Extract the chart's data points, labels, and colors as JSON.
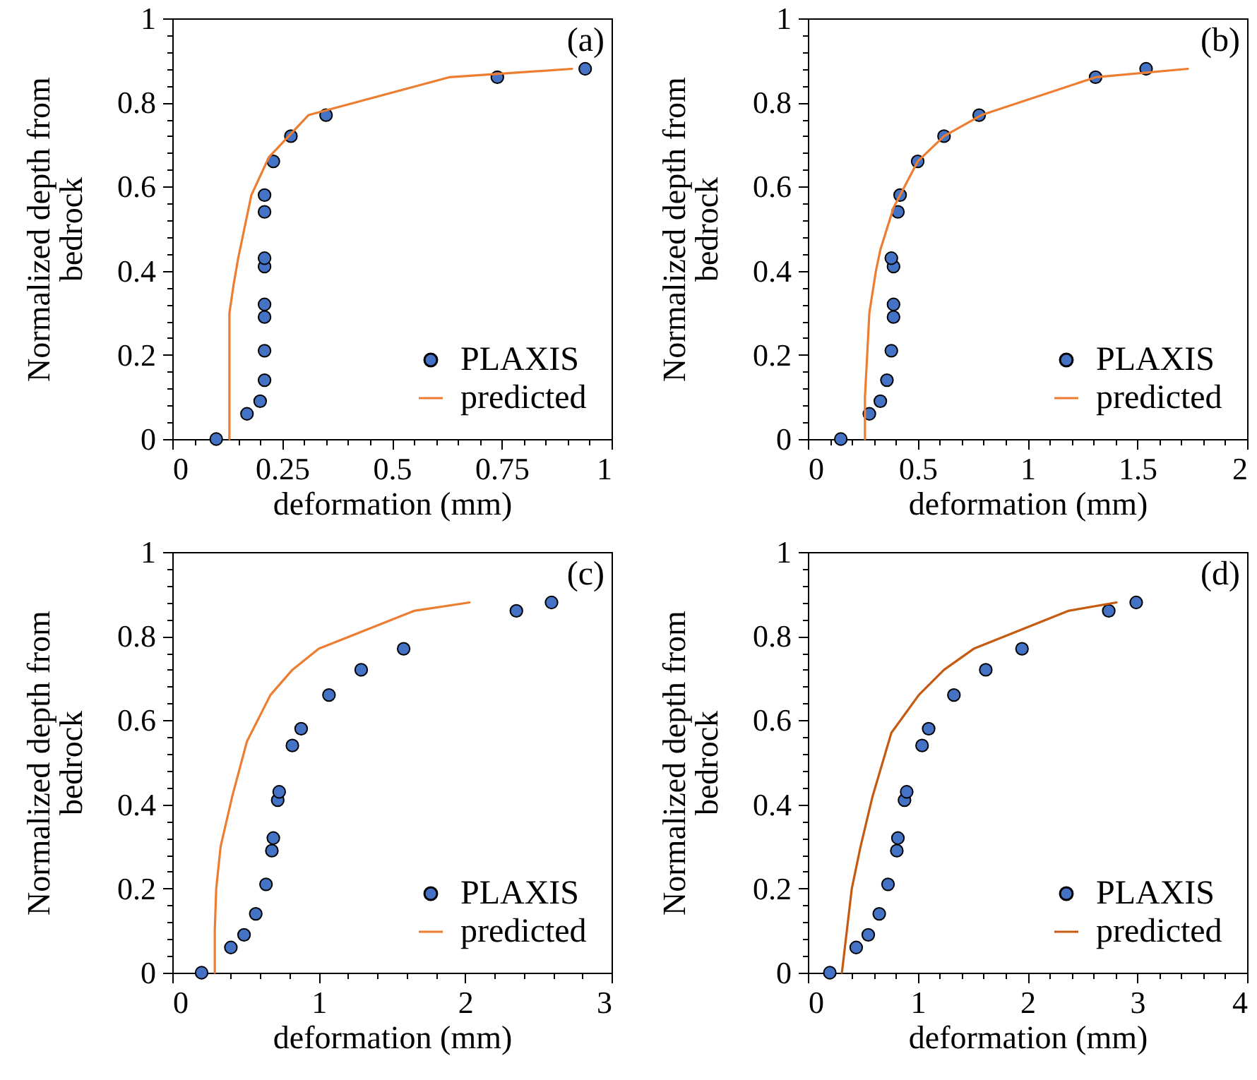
{
  "chart_data": [
    {
      "type": "scatter",
      "xlabel": "deformation (mm)",
      "ylabel": "Normalized depth from bedrock",
      "annotations": [
        "(a)"
      ],
      "legend": "bottom right",
      "xlim": [
        0,
        1
      ],
      "ylim": [
        0,
        1
      ],
      "xticks": [
        0,
        {
          "value": 0.05,
          "label": null
        },
        {
          "value": 0.1,
          "label": null
        },
        {
          "value": 0.15,
          "label": null
        },
        {
          "value": 0.2,
          "label": null
        },
        0.25,
        {
          "value": 0.3,
          "label": null
        },
        {
          "value": 0.35,
          "label": null
        },
        {
          "value": 0.4,
          "label": null
        },
        {
          "value": 0.45,
          "label": null
        },
        0.5,
        {
          "value": 0.55,
          "label": null
        },
        {
          "value": 0.6,
          "label": null
        },
        {
          "value": 0.65,
          "label": null
        },
        {
          "value": 0.7,
          "label": null
        },
        0.75,
        {
          "value": 0.8,
          "label": null
        },
        {
          "value": 0.85,
          "label": null
        },
        {
          "value": 0.9,
          "label": null
        },
        {
          "value": 0.95,
          "label": null
        },
        1
      ],
      "yticks": [
        0,
        {
          "value": 0.04,
          "label": null
        },
        {
          "value": 0.08,
          "label": null
        },
        {
          "value": 0.12,
          "label": null
        },
        {
          "value": 0.16,
          "label": null
        },
        0.2,
        {
          "value": 0.24,
          "label": null
        },
        {
          "value": 0.28,
          "label": null
        },
        {
          "value": 0.32,
          "label": null
        },
        {
          "value": 0.36,
          "label": null
        },
        0.4,
        {
          "value": 0.44,
          "label": null
        },
        {
          "value": 0.48,
          "label": null
        },
        {
          "value": 0.52,
          "label": null
        },
        {
          "value": 0.56,
          "label": null
        },
        0.6,
        {
          "value": 0.64,
          "label": null
        },
        {
          "value": 0.68,
          "label": null
        },
        {
          "value": 0.72,
          "label": null
        },
        {
          "value": 0.76,
          "label": null
        },
        0.8,
        {
          "value": 0.84,
          "label": null
        },
        {
          "value": 0.88,
          "label": null
        },
        {
          "value": 0.92,
          "label": null
        },
        {
          "value": 0.96,
          "label": null
        },
        1
      ],
      "series": [
        {
          "name": "PLAXIS",
          "marker": "circle",
          "color": "#4472c4",
          "x": [
            0.1,
            0.17,
            0.2,
            0.21,
            0.21,
            0.21,
            0.21,
            0.21,
            0.21,
            0.21,
            0.21,
            0.23,
            0.27,
            0.35,
            0.74,
            0.94
          ],
          "values": [
            0,
            0.06,
            0.09,
            0.14,
            0.21,
            0.29,
            0.32,
            0.41,
            0.43,
            0.54,
            0.58,
            0.66,
            0.72,
            0.77,
            0.86,
            0.88
          ]
        },
        {
          "name": "predicted",
          "type": "line",
          "line_style": "solid",
          "color": "#ed7d31",
          "x": [
            0.13,
            0.13,
            0.13,
            0.14,
            0.15,
            0.18,
            0.22,
            0.31,
            0.63,
            0.91
          ],
          "values": [
            0,
            0.2,
            0.3,
            0.37,
            0.43,
            0.58,
            0.67,
            0.77,
            0.86,
            0.88
          ]
        }
      ]
    },
    {
      "type": "scatter",
      "xlabel": "deformation (mm)",
      "ylabel": "Normalized depth from bedrock",
      "annotations": [
        "(b)"
      ],
      "legend": "bottom right",
      "xlim": [
        0,
        2
      ],
      "ylim": [
        0,
        1
      ],
      "xticks": [
        0,
        {
          "value": 0.1,
          "label": null
        },
        {
          "value": 0.2,
          "label": null
        },
        {
          "value": 0.3,
          "label": null
        },
        {
          "value": 0.4,
          "label": null
        },
        0.5,
        {
          "value": 0.6,
          "label": null
        },
        {
          "value": 0.7,
          "label": null
        },
        {
          "value": 0.8,
          "label": null
        },
        {
          "value": 0.9,
          "label": null
        },
        1,
        {
          "value": 1.1,
          "label": null
        },
        {
          "value": 1.2,
          "label": null
        },
        {
          "value": 1.3,
          "label": null
        },
        {
          "value": 1.4,
          "label": null
        },
        1.5,
        {
          "value": 1.6,
          "label": null
        },
        {
          "value": 1.7,
          "label": null
        },
        {
          "value": 1.8,
          "label": null
        },
        {
          "value": 1.9,
          "label": null
        },
        2
      ],
      "yticks": [
        0,
        {
          "value": 0.04,
          "label": null
        },
        {
          "value": 0.08,
          "label": null
        },
        {
          "value": 0.12,
          "label": null
        },
        {
          "value": 0.16,
          "label": null
        },
        0.2,
        {
          "value": 0.24,
          "label": null
        },
        {
          "value": 0.28,
          "label": null
        },
        {
          "value": 0.32,
          "label": null
        },
        {
          "value": 0.36,
          "label": null
        },
        0.4,
        {
          "value": 0.44,
          "label": null
        },
        {
          "value": 0.48,
          "label": null
        },
        {
          "value": 0.52,
          "label": null
        },
        {
          "value": 0.56,
          "label": null
        },
        0.6,
        {
          "value": 0.64,
          "label": null
        },
        {
          "value": 0.68,
          "label": null
        },
        {
          "value": 0.72,
          "label": null
        },
        {
          "value": 0.76,
          "label": null
        },
        0.8,
        {
          "value": 0.84,
          "label": null
        },
        {
          "value": 0.88,
          "label": null
        },
        {
          "value": 0.92,
          "label": null
        },
        {
          "value": 0.96,
          "label": null
        },
        1
      ],
      "series": [
        {
          "name": "PLAXIS",
          "marker": "circle",
          "color": "#4472c4",
          "x": [
            0.15,
            0.28,
            0.33,
            0.36,
            0.38,
            0.39,
            0.39,
            0.39,
            0.38,
            0.41,
            0.42,
            0.5,
            0.62,
            0.78,
            1.31,
            1.54
          ],
          "values": [
            0,
            0.06,
            0.09,
            0.14,
            0.21,
            0.29,
            0.32,
            0.41,
            0.43,
            0.54,
            0.58,
            0.66,
            0.72,
            0.77,
            0.86,
            0.88
          ]
        },
        {
          "name": "predicted",
          "type": "line",
          "line_style": "solid",
          "color": "#ed7d31",
          "x": [
            0.26,
            0.26,
            0.27,
            0.28,
            0.31,
            0.33,
            0.36,
            0.39,
            0.44,
            0.5,
            0.62,
            0.79,
            1.31,
            1.73
          ],
          "values": [
            0,
            0.1,
            0.2,
            0.3,
            0.4,
            0.45,
            0.5,
            0.55,
            0.6,
            0.66,
            0.72,
            0.77,
            0.86,
            0.88
          ]
        }
      ]
    },
    {
      "type": "scatter",
      "xlabel": "deformation (mm)",
      "ylabel": "Normalized depth from bedrock",
      "annotations": [
        "(c)"
      ],
      "legend": "bottom right",
      "xlim": [
        0,
        3
      ],
      "ylim": [
        0,
        1
      ],
      "xticks": [
        0,
        {
          "value": 0.2,
          "label": null
        },
        {
          "value": 0.4,
          "label": null
        },
        {
          "value": 0.6,
          "label": null
        },
        {
          "value": 0.8,
          "label": null
        },
        1,
        {
          "value": 1.2,
          "label": null
        },
        {
          "value": 1.4,
          "label": null
        },
        {
          "value": 1.6,
          "label": null
        },
        {
          "value": 1.8,
          "label": null
        },
        2,
        {
          "value": 2.2,
          "label": null
        },
        {
          "value": 2.4,
          "label": null
        },
        {
          "value": 2.6,
          "label": null
        },
        {
          "value": 2.8,
          "label": null
        },
        3
      ],
      "yticks": [
        0,
        {
          "value": 0.04,
          "label": null
        },
        {
          "value": 0.08,
          "label": null
        },
        {
          "value": 0.12,
          "label": null
        },
        {
          "value": 0.16,
          "label": null
        },
        0.2,
        {
          "value": 0.24,
          "label": null
        },
        {
          "value": 0.28,
          "label": null
        },
        {
          "value": 0.32,
          "label": null
        },
        {
          "value": 0.36,
          "label": null
        },
        0.4,
        {
          "value": 0.44,
          "label": null
        },
        {
          "value": 0.48,
          "label": null
        },
        {
          "value": 0.52,
          "label": null
        },
        {
          "value": 0.56,
          "label": null
        },
        0.6,
        {
          "value": 0.64,
          "label": null
        },
        {
          "value": 0.68,
          "label": null
        },
        {
          "value": 0.72,
          "label": null
        },
        {
          "value": 0.76,
          "label": null
        },
        0.8,
        {
          "value": 0.84,
          "label": null
        },
        {
          "value": 0.88,
          "label": null
        },
        {
          "value": 0.92,
          "label": null
        },
        {
          "value": 0.96,
          "label": null
        },
        1
      ],
      "series": [
        {
          "name": "PLAXIS",
          "marker": "circle",
          "color": "#4472c4",
          "x": [
            0.2,
            0.4,
            0.49,
            0.57,
            0.64,
            0.68,
            0.69,
            0.72,
            0.73,
            0.82,
            0.88,
            1.07,
            1.29,
            1.58,
            2.35,
            2.59
          ],
          "values": [
            0,
            0.06,
            0.09,
            0.14,
            0.21,
            0.29,
            0.32,
            0.41,
            0.43,
            0.54,
            0.58,
            0.66,
            0.72,
            0.77,
            0.86,
            0.88
          ]
        },
        {
          "name": "predicted",
          "type": "line",
          "line_style": "solid",
          "color": "#ed7d31",
          "x": [
            0.29,
            0.29,
            0.3,
            0.33,
            0.41,
            0.51,
            0.67,
            0.82,
            1.0,
            1.65,
            2.03
          ],
          "values": [
            0,
            0.1,
            0.2,
            0.3,
            0.42,
            0.55,
            0.66,
            0.72,
            0.77,
            0.86,
            0.88
          ]
        }
      ]
    },
    {
      "type": "scatter",
      "xlabel": "deformation (mm)",
      "ylabel": "Normalized depth from bedrock",
      "annotations": [
        "(d)"
      ],
      "legend": "bottom right",
      "xlim": [
        0,
        4
      ],
      "ylim": [
        0,
        1
      ],
      "xticks": [
        0,
        {
          "value": 0.2,
          "label": null
        },
        {
          "value": 0.4,
          "label": null
        },
        {
          "value": 0.6,
          "label": null
        },
        {
          "value": 0.8,
          "label": null
        },
        1,
        {
          "value": 1.2,
          "label": null
        },
        {
          "value": 1.4,
          "label": null
        },
        {
          "value": 1.6,
          "label": null
        },
        {
          "value": 1.8,
          "label": null
        },
        2,
        {
          "value": 2.2,
          "label": null
        },
        {
          "value": 2.4,
          "label": null
        },
        {
          "value": 2.6,
          "label": null
        },
        {
          "value": 2.8,
          "label": null
        },
        3,
        {
          "value": 3.2,
          "label": null
        },
        {
          "value": 3.4,
          "label": null
        },
        {
          "value": 3.6,
          "label": null
        },
        {
          "value": 3.8,
          "label": null
        },
        4
      ],
      "yticks": [
        0,
        {
          "value": 0.04,
          "label": null
        },
        {
          "value": 0.08,
          "label": null
        },
        {
          "value": 0.12,
          "label": null
        },
        {
          "value": 0.16,
          "label": null
        },
        0.2,
        {
          "value": 0.24,
          "label": null
        },
        {
          "value": 0.28,
          "label": null
        },
        {
          "value": 0.32,
          "label": null
        },
        {
          "value": 0.36,
          "label": null
        },
        0.4,
        {
          "value": 0.44,
          "label": null
        },
        {
          "value": 0.48,
          "label": null
        },
        {
          "value": 0.52,
          "label": null
        },
        {
          "value": 0.56,
          "label": null
        },
        0.6,
        {
          "value": 0.64,
          "label": null
        },
        {
          "value": 0.68,
          "label": null
        },
        {
          "value": 0.72,
          "label": null
        },
        {
          "value": 0.76,
          "label": null
        },
        0.8,
        {
          "value": 0.84,
          "label": null
        },
        {
          "value": 0.88,
          "label": null
        },
        {
          "value": 0.92,
          "label": null
        },
        {
          "value": 0.96,
          "label": null
        },
        1
      ],
      "series": [
        {
          "name": "PLAXIS",
          "marker": "circle",
          "color": "#4472c4",
          "x": [
            0.2,
            0.44,
            0.55,
            0.65,
            0.73,
            0.81,
            0.82,
            0.88,
            0.9,
            1.04,
            1.1,
            1.33,
            1.62,
            1.95,
            2.74,
            2.99
          ],
          "values": [
            0,
            0.06,
            0.09,
            0.14,
            0.21,
            0.29,
            0.32,
            0.41,
            0.43,
            0.54,
            0.58,
            0.66,
            0.72,
            0.77,
            0.86,
            0.88
          ]
        },
        {
          "name": "predicted",
          "type": "line",
          "line_style": "solid",
          "color": "#c55a11",
          "x": [
            0.31,
            0.4,
            0.48,
            0.59,
            0.76,
            1.01,
            1.24,
            1.51,
            2.37,
            2.81
          ],
          "values": [
            0,
            0.2,
            0.3,
            0.42,
            0.57,
            0.66,
            0.72,
            0.77,
            0.86,
            0.88
          ]
        }
      ]
    }
  ]
}
